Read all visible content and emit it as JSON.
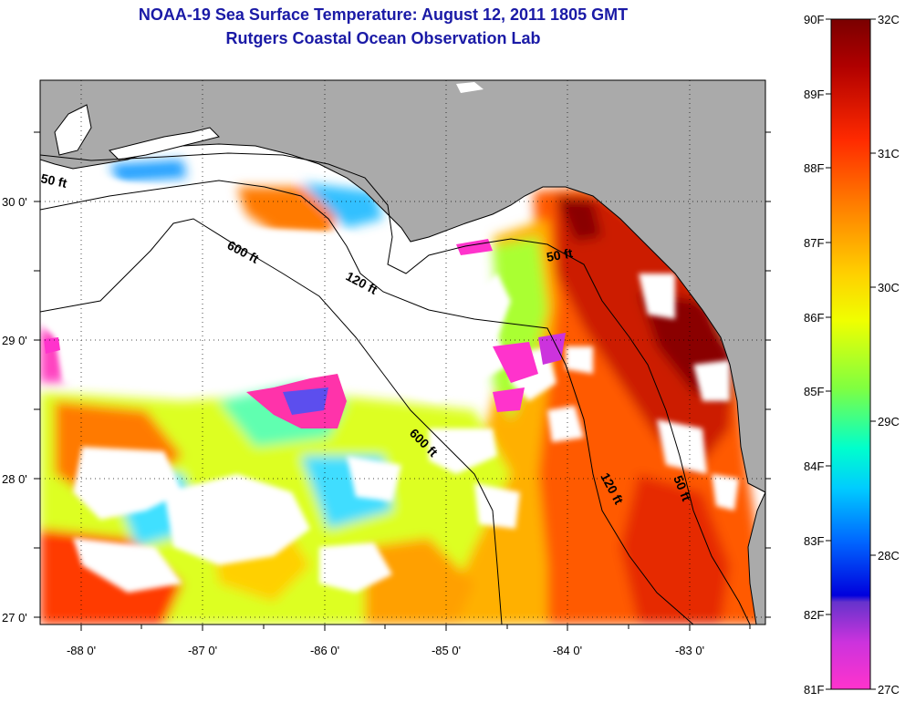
{
  "title": {
    "line1": "NOAA-19 Sea Surface Temperature:  August 12, 2011 1805 GMT",
    "line2": "Rutgers Coastal Ocean Observation Lab"
  },
  "axes": {
    "lon_labels": [
      "-88 0'",
      "-87 0'",
      "-86 0'",
      "-85 0'",
      "-84 0'",
      "-83 0'"
    ],
    "lat_labels": [
      "30 0'",
      "29 0'",
      "28 0'",
      "27 0'"
    ],
    "lon_range": [
      -88.33,
      -82.4
    ],
    "lat_range": [
      26.95,
      30.85
    ]
  },
  "contours": {
    "labels": [
      "50 ft",
      "600 ft",
      "120 ft",
      "50 ft",
      "600 ft",
      "120 ft",
      "50 ft"
    ]
  },
  "colorbar": {
    "fahrenheit_labels": [
      "90F",
      "89F",
      "88F",
      "87F",
      "86F",
      "85F",
      "84F",
      "83F",
      "82F",
      "81F"
    ],
    "celsius_labels": [
      "32C",
      "31C",
      "30C",
      "29C",
      "28C",
      "27C"
    ]
  },
  "colors": {
    "land": "#aaaaaa",
    "cloud": "#ffffff",
    "title": "#1a1aa6",
    "warmest": "#7a0000",
    "coolest": "#ff33cc"
  }
}
